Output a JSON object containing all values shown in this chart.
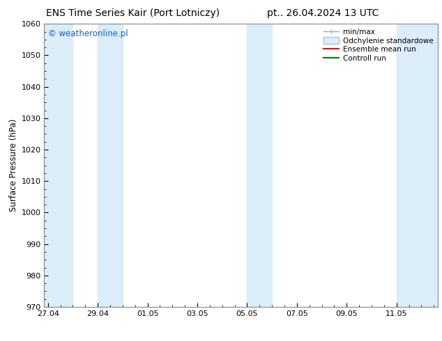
{
  "title_left": "ENS Time Series Kair (Port Lotniczy)",
  "title_right": "pt.. 26.04.2024 13 UTC",
  "ylabel": "Surface Pressure (hPa)",
  "ylim": [
    970,
    1060
  ],
  "yticks": [
    970,
    980,
    990,
    1000,
    1010,
    1020,
    1030,
    1040,
    1050,
    1060
  ],
  "xtick_labels": [
    "27.04",
    "29.04",
    "01.05",
    "03.05",
    "05.05",
    "07.05",
    "09.05",
    "11.05"
  ],
  "xtick_positions": [
    0,
    2,
    4,
    6,
    8,
    10,
    12,
    14
  ],
  "x_min": -0.15,
  "x_max": 15.65,
  "watermark": "© weatheronline.pl",
  "legend_items": [
    {
      "label": "min/max",
      "color": "#b0b0b0",
      "style": "errorbar"
    },
    {
      "label": "Odchylenie standardowe",
      "color": "#cce4f5",
      "style": "rect"
    },
    {
      "label": "Ensemble mean run",
      "color": "#ff0000",
      "style": "line"
    },
    {
      "label": "Controll run",
      "color": "#008000",
      "style": "line"
    }
  ],
  "shaded_bands": [
    {
      "x_start": -0.15,
      "x_end": 1.0
    },
    {
      "x_start": 2.0,
      "x_end": 3.0
    },
    {
      "x_start": 8.0,
      "x_end": 9.0
    },
    {
      "x_start": 14.0,
      "x_end": 15.65
    }
  ],
  "band_color": "#daedf8",
  "bg_color": "#ffffff",
  "spine_color": "#888888",
  "title_fontsize": 10,
  "tick_fontsize": 8,
  "label_fontsize": 8.5,
  "watermark_color": "#1a5eb5",
  "watermark_fontsize": 8.5
}
